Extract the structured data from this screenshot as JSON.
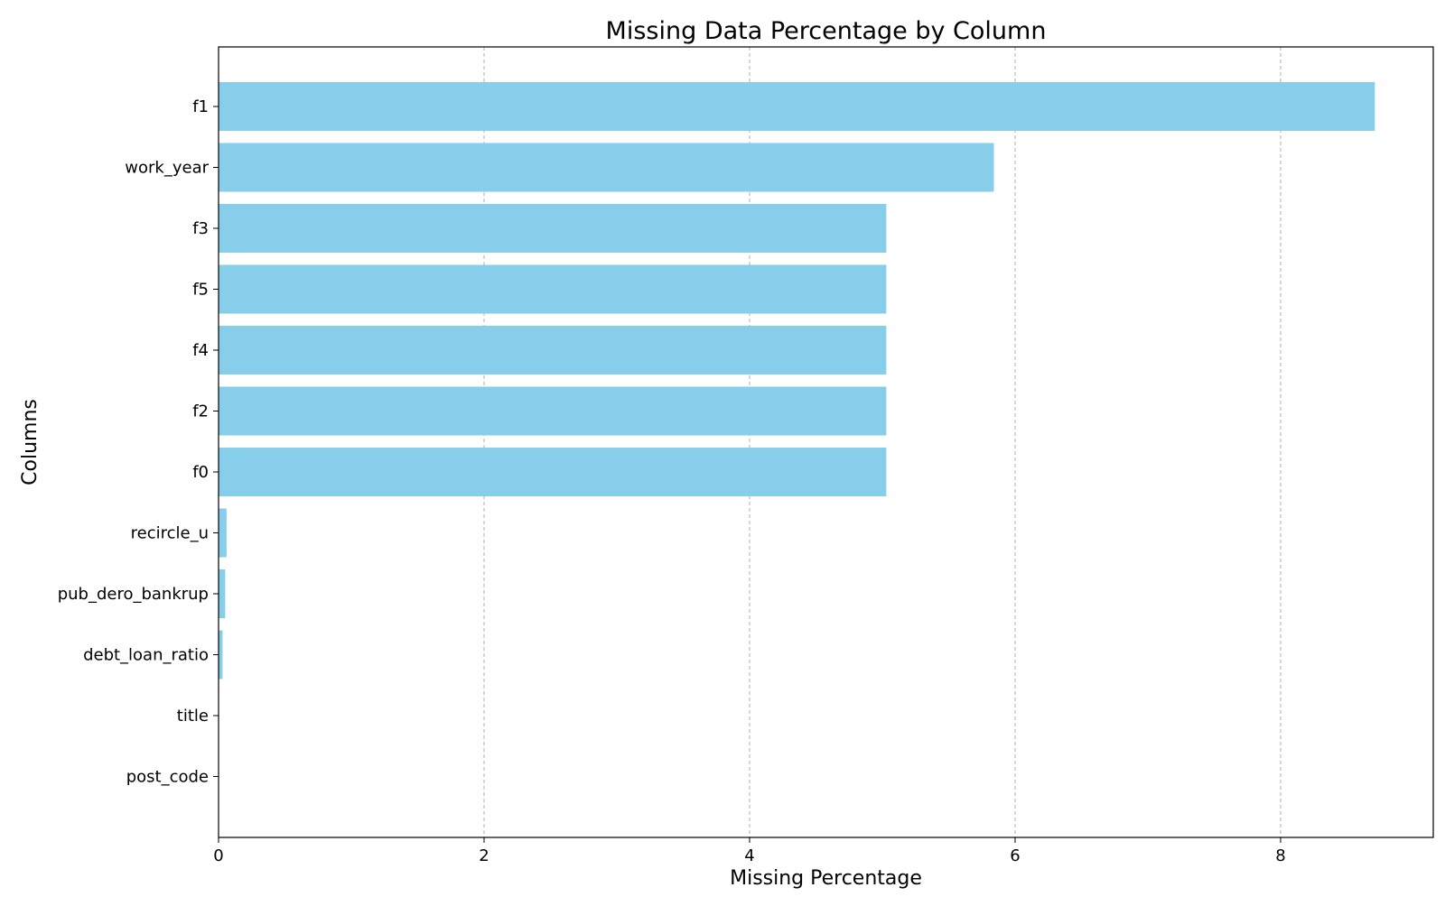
{
  "chart_data": {
    "type": "bar",
    "orientation": "horizontal",
    "title": "Missing Data Percentage by Column",
    "xlabel": "Missing Percentage",
    "ylabel": "Columns",
    "categories": [
      "f1",
      "work_year",
      "f3",
      "f5",
      "f4",
      "f2",
      "f0",
      "recircle_u",
      "pub_dero_bankrup",
      "debt_loan_ratio",
      "title",
      "post_code"
    ],
    "values": [
      8.71,
      5.84,
      5.03,
      5.03,
      5.03,
      5.03,
      5.03,
      0.06,
      0.05,
      0.03,
      0.0,
      0.0
    ],
    "xlim": [
      0,
      9.15
    ],
    "xticks": [
      0,
      2,
      4,
      6,
      8
    ],
    "grid": "x-dashed",
    "bar_color": "#87ceeb"
  }
}
